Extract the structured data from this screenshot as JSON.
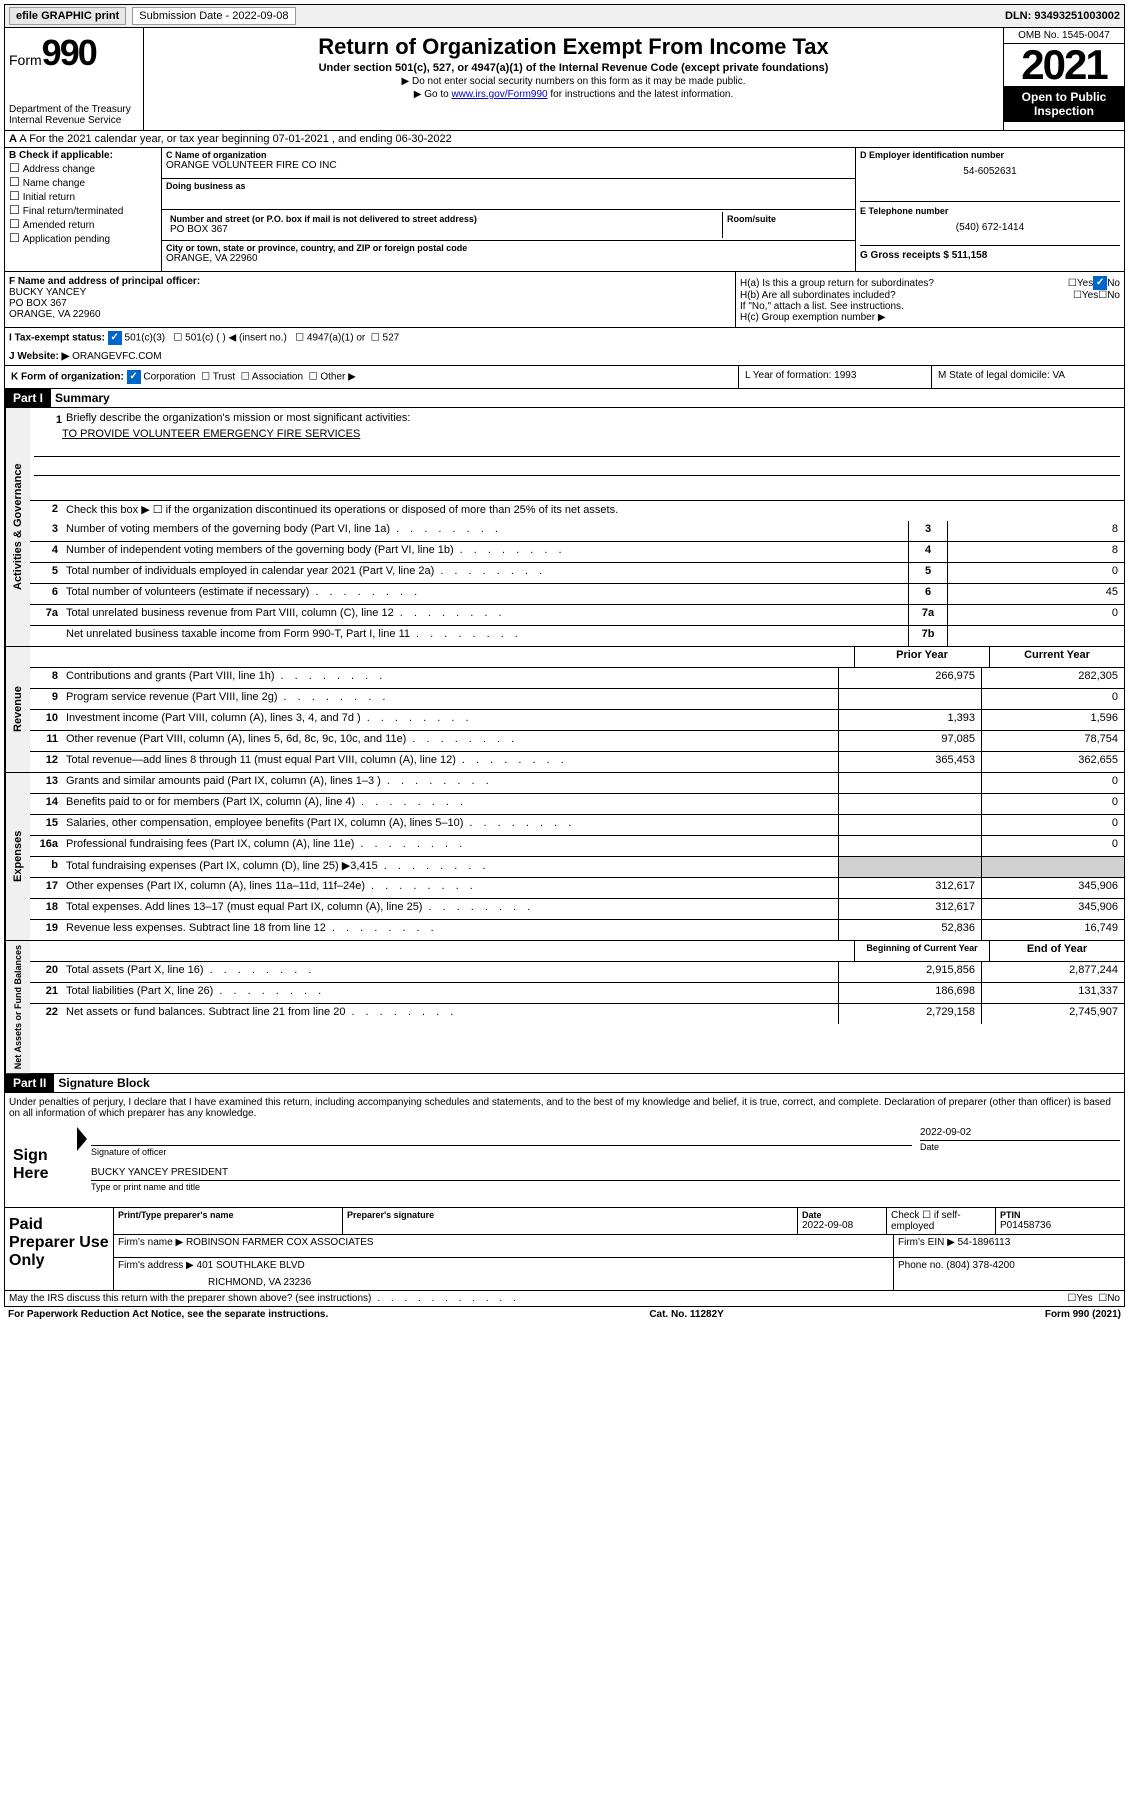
{
  "topbar": {
    "efile": "efile GRAPHIC print",
    "submission_label": "Submission Date - 2022-09-08",
    "dln": "DLN: 93493251003002"
  },
  "header": {
    "form_label": "Form",
    "form_num": "990",
    "dept": "Department of the Treasury",
    "irs": "Internal Revenue Service",
    "title": "Return of Organization Exempt From Income Tax",
    "subtitle": "Under section 501(c), 527, or 4947(a)(1) of the Internal Revenue Code (except private foundations)",
    "note1": "▶ Do not enter social security numbers on this form as it may be made public.",
    "note2_pre": "▶ Go to ",
    "note2_link": "www.irs.gov/Form990",
    "note2_post": " for instructions and the latest information.",
    "omb": "OMB No. 1545-0047",
    "year": "2021",
    "inspection1": "Open to Public",
    "inspection2": "Inspection"
  },
  "row_a": "A For the 2021 calendar year, or tax year beginning 07-01-2021   , and ending 06-30-2022",
  "col_b": {
    "head": "B Check if applicable:",
    "items": [
      "Address change",
      "Name change",
      "Initial return",
      "Final return/terminated",
      "Amended return",
      "Application pending"
    ]
  },
  "col_c": {
    "name_label": "C Name of organization",
    "name": "ORANGE VOLUNTEER FIRE CO INC",
    "dba_label": "Doing business as",
    "addr_label": "Number and street (or P.O. box if mail is not delivered to street address)",
    "room_label": "Room/suite",
    "addr": "PO BOX 367",
    "city_label": "City or town, state or province, country, and ZIP or foreign postal code",
    "city": "ORANGE, VA  22960"
  },
  "col_d": {
    "ein_label": "D Employer identification number",
    "ein": "54-6052631",
    "phone_label": "E Telephone number",
    "phone": "(540) 672-1414",
    "gross_label": "G Gross receipts $ 511,158"
  },
  "row_f": {
    "label": "F  Name and address of principal officer:",
    "name": "BUCKY YANCEY",
    "addr1": "PO BOX 367",
    "addr2": "ORANGE, VA  22960"
  },
  "row_h": {
    "ha": "H(a)  Is this a group return for subordinates?",
    "hb": "H(b)  Are all subordinates included?",
    "hb_note": "If \"No,\" attach a list. See instructions.",
    "hc": "H(c)  Group exemption number ▶",
    "yes": "Yes",
    "no": "No"
  },
  "row_i": {
    "label": "I   Tax-exempt status:",
    "opt1": "501(c)(3)",
    "opt2": "501(c) (   ) ◀ (insert no.)",
    "opt3": "4947(a)(1) or",
    "opt4": "527"
  },
  "row_j": {
    "label": "J   Website: ▶",
    "value": "ORANGEVFC.COM"
  },
  "row_k": {
    "label": "K Form of organization:",
    "opts": [
      "Corporation",
      "Trust",
      "Association",
      "Other ▶"
    ],
    "l_label": "L Year of formation: 1993",
    "m_label": "M State of legal domicile: VA"
  },
  "part1": {
    "header": "Part I",
    "title": "Summary"
  },
  "summary": {
    "line1_label": "Briefly describe the organization's mission or most significant activities:",
    "line1_text": "TO PROVIDE VOLUNTEER EMERGENCY FIRE SERVICES",
    "line2": "Check this box ▶ ☐  if the organization discontinued its operations or disposed of more than 25% of its net assets.",
    "rows_gov": [
      {
        "n": "3",
        "d": "Number of voting members of the governing body (Part VI, line 1a)",
        "box": "3",
        "v": "8"
      },
      {
        "n": "4",
        "d": "Number of independent voting members of the governing body (Part VI, line 1b)",
        "box": "4",
        "v": "8"
      },
      {
        "n": "5",
        "d": "Total number of individuals employed in calendar year 2021 (Part V, line 2a)",
        "box": "5",
        "v": "0"
      },
      {
        "n": "6",
        "d": "Total number of volunteers (estimate if necessary)",
        "box": "6",
        "v": "45"
      },
      {
        "n": "7a",
        "d": "Total unrelated business revenue from Part VIII, column (C), line 12",
        "box": "7a",
        "v": "0"
      },
      {
        "n": "",
        "d": "Net unrelated business taxable income from Form 990-T, Part I, line 11",
        "box": "7b",
        "v": ""
      }
    ],
    "col_prior": "Prior Year",
    "col_current": "Current Year",
    "rows_rev": [
      {
        "n": "8",
        "d": "Contributions and grants (Part VIII, line 1h)",
        "p": "266,975",
        "c": "282,305"
      },
      {
        "n": "9",
        "d": "Program service revenue (Part VIII, line 2g)",
        "p": "",
        "c": "0"
      },
      {
        "n": "10",
        "d": "Investment income (Part VIII, column (A), lines 3, 4, and 7d )",
        "p": "1,393",
        "c": "1,596"
      },
      {
        "n": "11",
        "d": "Other revenue (Part VIII, column (A), lines 5, 6d, 8c, 9c, 10c, and 11e)",
        "p": "97,085",
        "c": "78,754"
      },
      {
        "n": "12",
        "d": "Total revenue—add lines 8 through 11 (must equal Part VIII, column (A), line 12)",
        "p": "365,453",
        "c": "362,655"
      }
    ],
    "rows_exp": [
      {
        "n": "13",
        "d": "Grants and similar amounts paid (Part IX, column (A), lines 1–3 )",
        "p": "",
        "c": "0"
      },
      {
        "n": "14",
        "d": "Benefits paid to or for members (Part IX, column (A), line 4)",
        "p": "",
        "c": "0"
      },
      {
        "n": "15",
        "d": "Salaries, other compensation, employee benefits (Part IX, column (A), lines 5–10)",
        "p": "",
        "c": "0"
      },
      {
        "n": "16a",
        "d": "Professional fundraising fees (Part IX, column (A), line 11e)",
        "p": "",
        "c": "0"
      },
      {
        "n": "b",
        "d": "Total fundraising expenses (Part IX, column (D), line 25) ▶3,415",
        "shaded": true
      },
      {
        "n": "17",
        "d": "Other expenses (Part IX, column (A), lines 11a–11d, 11f–24e)",
        "p": "312,617",
        "c": "345,906"
      },
      {
        "n": "18",
        "d": "Total expenses. Add lines 13–17 (must equal Part IX, column (A), line 25)",
        "p": "312,617",
        "c": "345,906"
      },
      {
        "n": "19",
        "d": "Revenue less expenses. Subtract line 18 from line 12",
        "p": "52,836",
        "c": "16,749"
      }
    ],
    "col_begin": "Beginning of Current Year",
    "col_end": "End of Year",
    "rows_net": [
      {
        "n": "20",
        "d": "Total assets (Part X, line 16)",
        "p": "2,915,856",
        "c": "2,877,244"
      },
      {
        "n": "21",
        "d": "Total liabilities (Part X, line 26)",
        "p": "186,698",
        "c": "131,337"
      },
      {
        "n": "22",
        "d": "Net assets or fund balances. Subtract line 21 from line 20",
        "p": "2,729,158",
        "c": "2,745,907"
      }
    ]
  },
  "part2": {
    "header": "Part II",
    "title": "Signature Block",
    "penalty": "Under penalties of perjury, I declare that I have examined this return, including accompanying schedules and statements, and to the best of my knowledge and belief, it is true, correct, and complete. Declaration of preparer (other than officer) is based on all information of which preparer has any knowledge."
  },
  "sign": {
    "here": "Sign Here",
    "sig_label": "Signature of officer",
    "date": "2022-09-02",
    "date_label": "Date",
    "name": "BUCKY YANCEY PRESIDENT",
    "name_label": "Type or print name and title"
  },
  "paid": {
    "label": "Paid Preparer Use Only",
    "h1": "Print/Type preparer's name",
    "h2": "Preparer's signature",
    "h3": "Date",
    "h3v": "2022-09-08",
    "h4_check": "Check ☐ if self-employed",
    "h5": "PTIN",
    "h5v": "P01458736",
    "firm_name_label": "Firm's name     ▶",
    "firm_name": "ROBINSON FARMER COX ASSOCIATES",
    "firm_ein_label": "Firm's EIN ▶",
    "firm_ein": "54-1896113",
    "firm_addr_label": "Firm's address ▶",
    "firm_addr1": "401 SOUTHLAKE BLVD",
    "firm_addr2": "RICHMOND, VA  23236",
    "phone_label": "Phone no.",
    "phone": "(804) 378-4200"
  },
  "footer": {
    "discuss": "May the IRS discuss this return with the preparer shown above? (see instructions)",
    "paperwork": "For Paperwork Reduction Act Notice, see the separate instructions.",
    "cat": "Cat. No. 11282Y",
    "form": "Form 990 (2021)"
  },
  "side_labels": {
    "gov": "Activities & Governance",
    "rev": "Revenue",
    "exp": "Expenses",
    "net": "Net Assets or Fund Balances"
  }
}
